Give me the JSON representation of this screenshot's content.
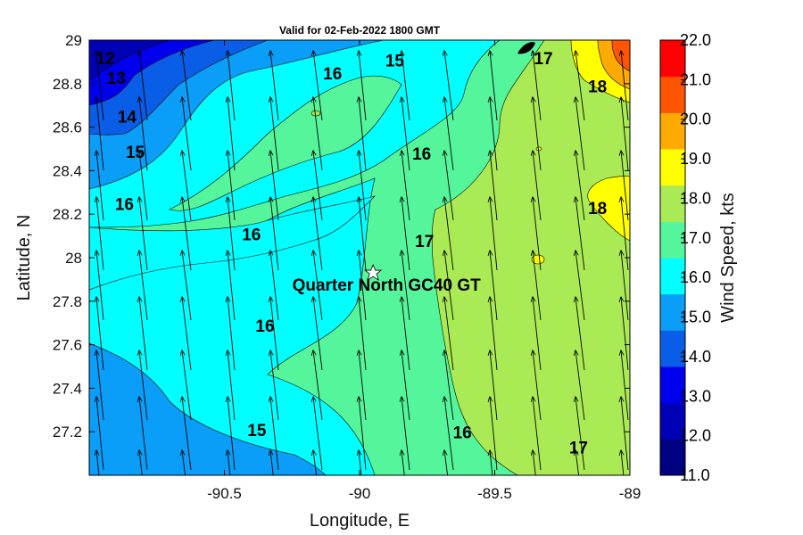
{
  "chart_data": {
    "type": "contour",
    "title": "Valid for 02-Feb-2022 1800 GMT",
    "xlabel": "Longitude, E",
    "ylabel": "Latitude, N",
    "xlim": [
      -91.0,
      -89.0
    ],
    "ylim": [
      27.0,
      29.0
    ],
    "xticks": [
      "-90.5",
      "-90",
      "-89.5",
      "-89"
    ],
    "yticks": [
      "27.2",
      "27.4",
      "27.6",
      "27.8",
      "28",
      "28.2",
      "28.4",
      "28.6",
      "28.8",
      "29"
    ],
    "colorbar": {
      "label": "Wind Speed, kts",
      "min": 11.0,
      "max": 22.0,
      "tick_labels": [
        "11.0",
        "12.0",
        "13.0",
        "14.0",
        "15.0",
        "16.0",
        "17.0",
        "18.0",
        "19.0",
        "20.0",
        "21.0",
        "22.0"
      ],
      "band_colors": [
        "#000080",
        "#0000b4",
        "#0000ee",
        "#0a5de6",
        "#0a9ef8",
        "#00ffff",
        "#55f59b",
        "#aaea55",
        "#ffff00",
        "#ffaa00",
        "#ff5500",
        "#ff0000"
      ]
    },
    "contour_labels": [
      {
        "text": "12",
        "lon": -90.94,
        "lat": 28.89
      },
      {
        "text": "13",
        "lon": -90.9,
        "lat": 28.8
      },
      {
        "text": "14",
        "lon": -90.86,
        "lat": 28.62
      },
      {
        "text": "15",
        "lon": -90.83,
        "lat": 28.46
      },
      {
        "text": "16",
        "lon": -90.87,
        "lat": 28.22
      },
      {
        "text": "16",
        "lon": -90.4,
        "lat": 28.08
      },
      {
        "text": "16",
        "lon": -90.1,
        "lat": 28.82
      },
      {
        "text": "15",
        "lon": -89.87,
        "lat": 28.88
      },
      {
        "text": "16",
        "lon": -89.77,
        "lat": 28.45
      },
      {
        "text": "17",
        "lon": -89.32,
        "lat": 28.89
      },
      {
        "text": "18",
        "lon": -89.12,
        "lat": 28.76
      },
      {
        "text": "18",
        "lon": -89.12,
        "lat": 28.2
      },
      {
        "text": "17",
        "lon": -89.76,
        "lat": 28.05
      },
      {
        "text": "16",
        "lon": -90.35,
        "lat": 27.66
      },
      {
        "text": "15",
        "lon": -90.38,
        "lat": 27.18
      },
      {
        "text": "16",
        "lon": -89.62,
        "lat": 27.17
      },
      {
        "text": "17",
        "lon": -89.19,
        "lat": 27.1
      }
    ],
    "station": {
      "name": "Quarter North GC40 GT",
      "lon": -89.95,
      "lat": 27.93
    },
    "wind_direction": "arrows point toward north-north-west"
  }
}
